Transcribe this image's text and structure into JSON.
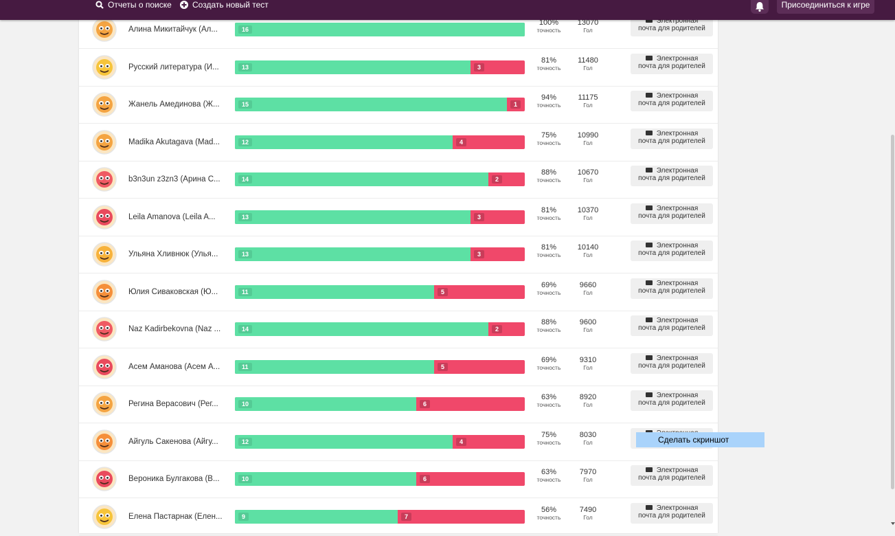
{
  "nav": {
    "search_reports": "Отчеты о поиске",
    "create_test": "Создать новый тест",
    "join_game": "Присоединиться к игре"
  },
  "labels": {
    "accuracy": "точность",
    "score": "Гол",
    "email_line1": "Электронная",
    "email_line2": "почта для родителей"
  },
  "tooltip": "Сделать скриншот",
  "rows": [
    {
      "name": "Алина Микитайчук (Ал...",
      "correct": "16",
      "incorrect": "",
      "pct": "100%",
      "score": "13070",
      "correct_fraction": 1.0,
      "avatar_color": "#f4a442",
      "avatar_icon": "monster-avatar-icon"
    },
    {
      "name": "Русский литература (И...",
      "correct": "13",
      "incorrect": "3",
      "pct": "81%",
      "score": "11480",
      "correct_fraction": 0.8125,
      "avatar_color": "#f6c43a",
      "avatar_icon": "penguin-avatar-icon"
    },
    {
      "name": "Жанель Амединова (Ж...",
      "correct": "15",
      "incorrect": "1",
      "pct": "94%",
      "score": "11175",
      "correct_fraction": 0.9375,
      "avatar_color": "#f4a442",
      "avatar_icon": "monster-avatar-icon"
    },
    {
      "name": "Madika Akutagava (Mad...",
      "correct": "12",
      "incorrect": "4",
      "pct": "75%",
      "score": "10990",
      "correct_fraction": 0.75,
      "avatar_color": "#f4a442",
      "avatar_icon": "monster-avatar-icon"
    },
    {
      "name": "b3n3un z3zn3 (Арина С...",
      "correct": "14",
      "incorrect": "2",
      "pct": "88%",
      "score": "10670",
      "correct_fraction": 0.875,
      "avatar_color": "#ef5a63",
      "avatar_icon": "cat-avatar-icon"
    },
    {
      "name": "Leila Amanova (Leila A...",
      "correct": "13",
      "incorrect": "3",
      "pct": "81%",
      "score": "10370",
      "correct_fraction": 0.8125,
      "avatar_color": "#e94a5d",
      "avatar_icon": "shoe-avatar-icon"
    },
    {
      "name": "Ульяна Хливнюк (Улья...",
      "correct": "13",
      "incorrect": "3",
      "pct": "81%",
      "score": "10140",
      "correct_fraction": 0.8125,
      "avatar_color": "#f7b23b",
      "avatar_icon": "bus-avatar-icon"
    },
    {
      "name": "Юлия Сиваковская (Ю...",
      "correct": "11",
      "incorrect": "5",
      "pct": "69%",
      "score": "9660",
      "correct_fraction": 0.6875,
      "avatar_color": "#f58f3b",
      "avatar_icon": "bulb-avatar-icon"
    },
    {
      "name": "Naz Kadirbekovna (Naz ...",
      "correct": "14",
      "incorrect": "2",
      "pct": "88%",
      "score": "9600",
      "correct_fraction": 0.875,
      "avatar_color": "#ef5a63",
      "avatar_icon": "parrot-avatar-icon"
    },
    {
      "name": "Асем Аманова (Асем А...",
      "correct": "11",
      "incorrect": "5",
      "pct": "69%",
      "score": "9310",
      "correct_fraction": 0.6875,
      "avatar_color": "#e94a5d",
      "avatar_icon": "fish-avatar-icon"
    },
    {
      "name": "Регина Верасович (Рег...",
      "correct": "10",
      "incorrect": "6",
      "pct": "63%",
      "score": "8920",
      "correct_fraction": 0.625,
      "avatar_color": "#f4a442",
      "avatar_icon": "sloth-avatar-icon"
    },
    {
      "name": "Айгуль Сакенова (Айгу...",
      "correct": "12",
      "incorrect": "4",
      "pct": "75%",
      "score": "8030",
      "correct_fraction": 0.75,
      "avatar_color": "#f58f3b",
      "avatar_icon": "orange-avatar-icon"
    },
    {
      "name": "Вероника Булгакова (В...",
      "correct": "10",
      "incorrect": "6",
      "pct": "63%",
      "score": "7970",
      "correct_fraction": 0.625,
      "avatar_color": "#e94a5d",
      "avatar_icon": "avocado-avatar-icon"
    },
    {
      "name": "Елена Пастарнак (Елен...",
      "correct": "9",
      "incorrect": "7",
      "pct": "56%",
      "score": "7490",
      "correct_fraction": 0.5625,
      "avatar_color": "#f6c43a",
      "avatar_icon": "penguin-avatar-icon"
    }
  ]
}
